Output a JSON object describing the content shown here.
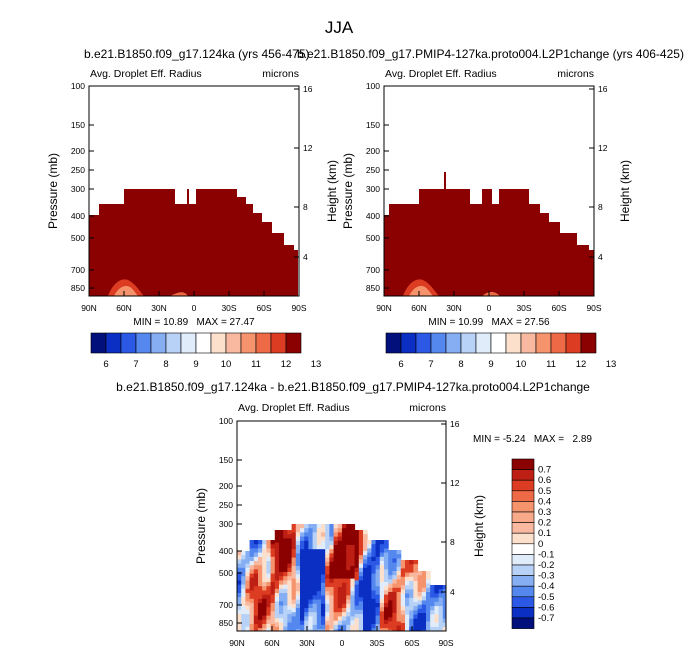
{
  "figure": {
    "title": "JJA",
    "colors": {
      "dark_red": "#8b0000",
      "red_palette": [
        "#fde0cc",
        "#f9b9a0",
        "#f5936d",
        "#ee6a46",
        "#dc3c22",
        "#bd1f14",
        "#8b0000"
      ],
      "blue_palette": [
        "#01107a",
        "#0a2fc2",
        "#2b59e5",
        "#5588ee",
        "#86aef3",
        "#b8d2f7",
        "#e1ecfb"
      ]
    }
  },
  "chart_data": [
    {
      "id": "panel1",
      "type": "contour",
      "title": "b.e21.B1850.f09_g17.124ka (yrs 456-475)",
      "left_label": "Avg. Droplet Eff. Radius",
      "right_label": "microns",
      "ylabel": "Pressure (mb)",
      "y2label": "Height (km)",
      "x_ticks": [
        "90N",
        "60N",
        "30N",
        "0",
        "30S",
        "60S",
        "90S"
      ],
      "y_ticks": [
        "100",
        "150",
        "200",
        "250",
        "300",
        "400",
        "500",
        "700",
        "850"
      ],
      "y2_ticks": [
        "16",
        "12",
        "8",
        "4"
      ],
      "min_max": "MIN = 10.89   MAX = 27.47",
      "min": 10.89,
      "max": 27.47,
      "colorbar": {
        "labels": [
          "6",
          "7",
          "8",
          "9",
          "10",
          "11",
          "12",
          "13"
        ]
      }
    },
    {
      "id": "panel2",
      "type": "contour",
      "title": "b.e21.B1850.f09_g17.PMIP4-127ka.proto004.L2P1change (yrs 406-425)",
      "left_label": "Avg. Droplet Eff. Radius",
      "right_label": "microns",
      "ylabel": "Pressure (mb)",
      "y2label": "Height (km)",
      "x_ticks": [
        "90N",
        "60N",
        "30N",
        "0",
        "30S",
        "60S",
        "90S"
      ],
      "y_ticks": [
        "100",
        "150",
        "200",
        "250",
        "300",
        "400",
        "500",
        "700",
        "850"
      ],
      "y2_ticks": [
        "16",
        "12",
        "8",
        "4"
      ],
      "min_max": "MIN = 10.99   MAX = 27.56",
      "min": 10.99,
      "max": 27.56,
      "colorbar": {
        "labels": [
          "6",
          "7",
          "8",
          "9",
          "10",
          "11",
          "12",
          "13"
        ]
      }
    },
    {
      "id": "panel3",
      "type": "contour",
      "title": "b.e21.B1850.f09_g17.124ka - b.e21.B1850.f09_g17.PMIP4-127ka.proto004.L2P1change",
      "left_label": "Avg. Droplet Eff. Radius",
      "right_label": "microns",
      "ylabel": "Pressure (mb)",
      "y2label": "Height (km)",
      "x_ticks": [
        "90N",
        "60N",
        "30N",
        "0",
        "30S",
        "60S",
        "90S"
      ],
      "y_ticks": [
        "100",
        "150",
        "200",
        "250",
        "300",
        "400",
        "500",
        "700",
        "850"
      ],
      "y2_ticks": [
        "16",
        "12",
        "8",
        "4"
      ],
      "min_max": "MIN = -5.24   MAX =   2.89",
      "min": -5.24,
      "max": 2.89,
      "colorbar": {
        "labels": [
          "0.7",
          "0.6",
          "0.5",
          "0.4",
          "0.3",
          "0.2",
          "0.1",
          "0",
          "-0.1",
          "-0.2",
          "-0.3",
          "-0.4",
          "-0.5",
          "-0.6",
          "-0.7"
        ]
      }
    }
  ]
}
